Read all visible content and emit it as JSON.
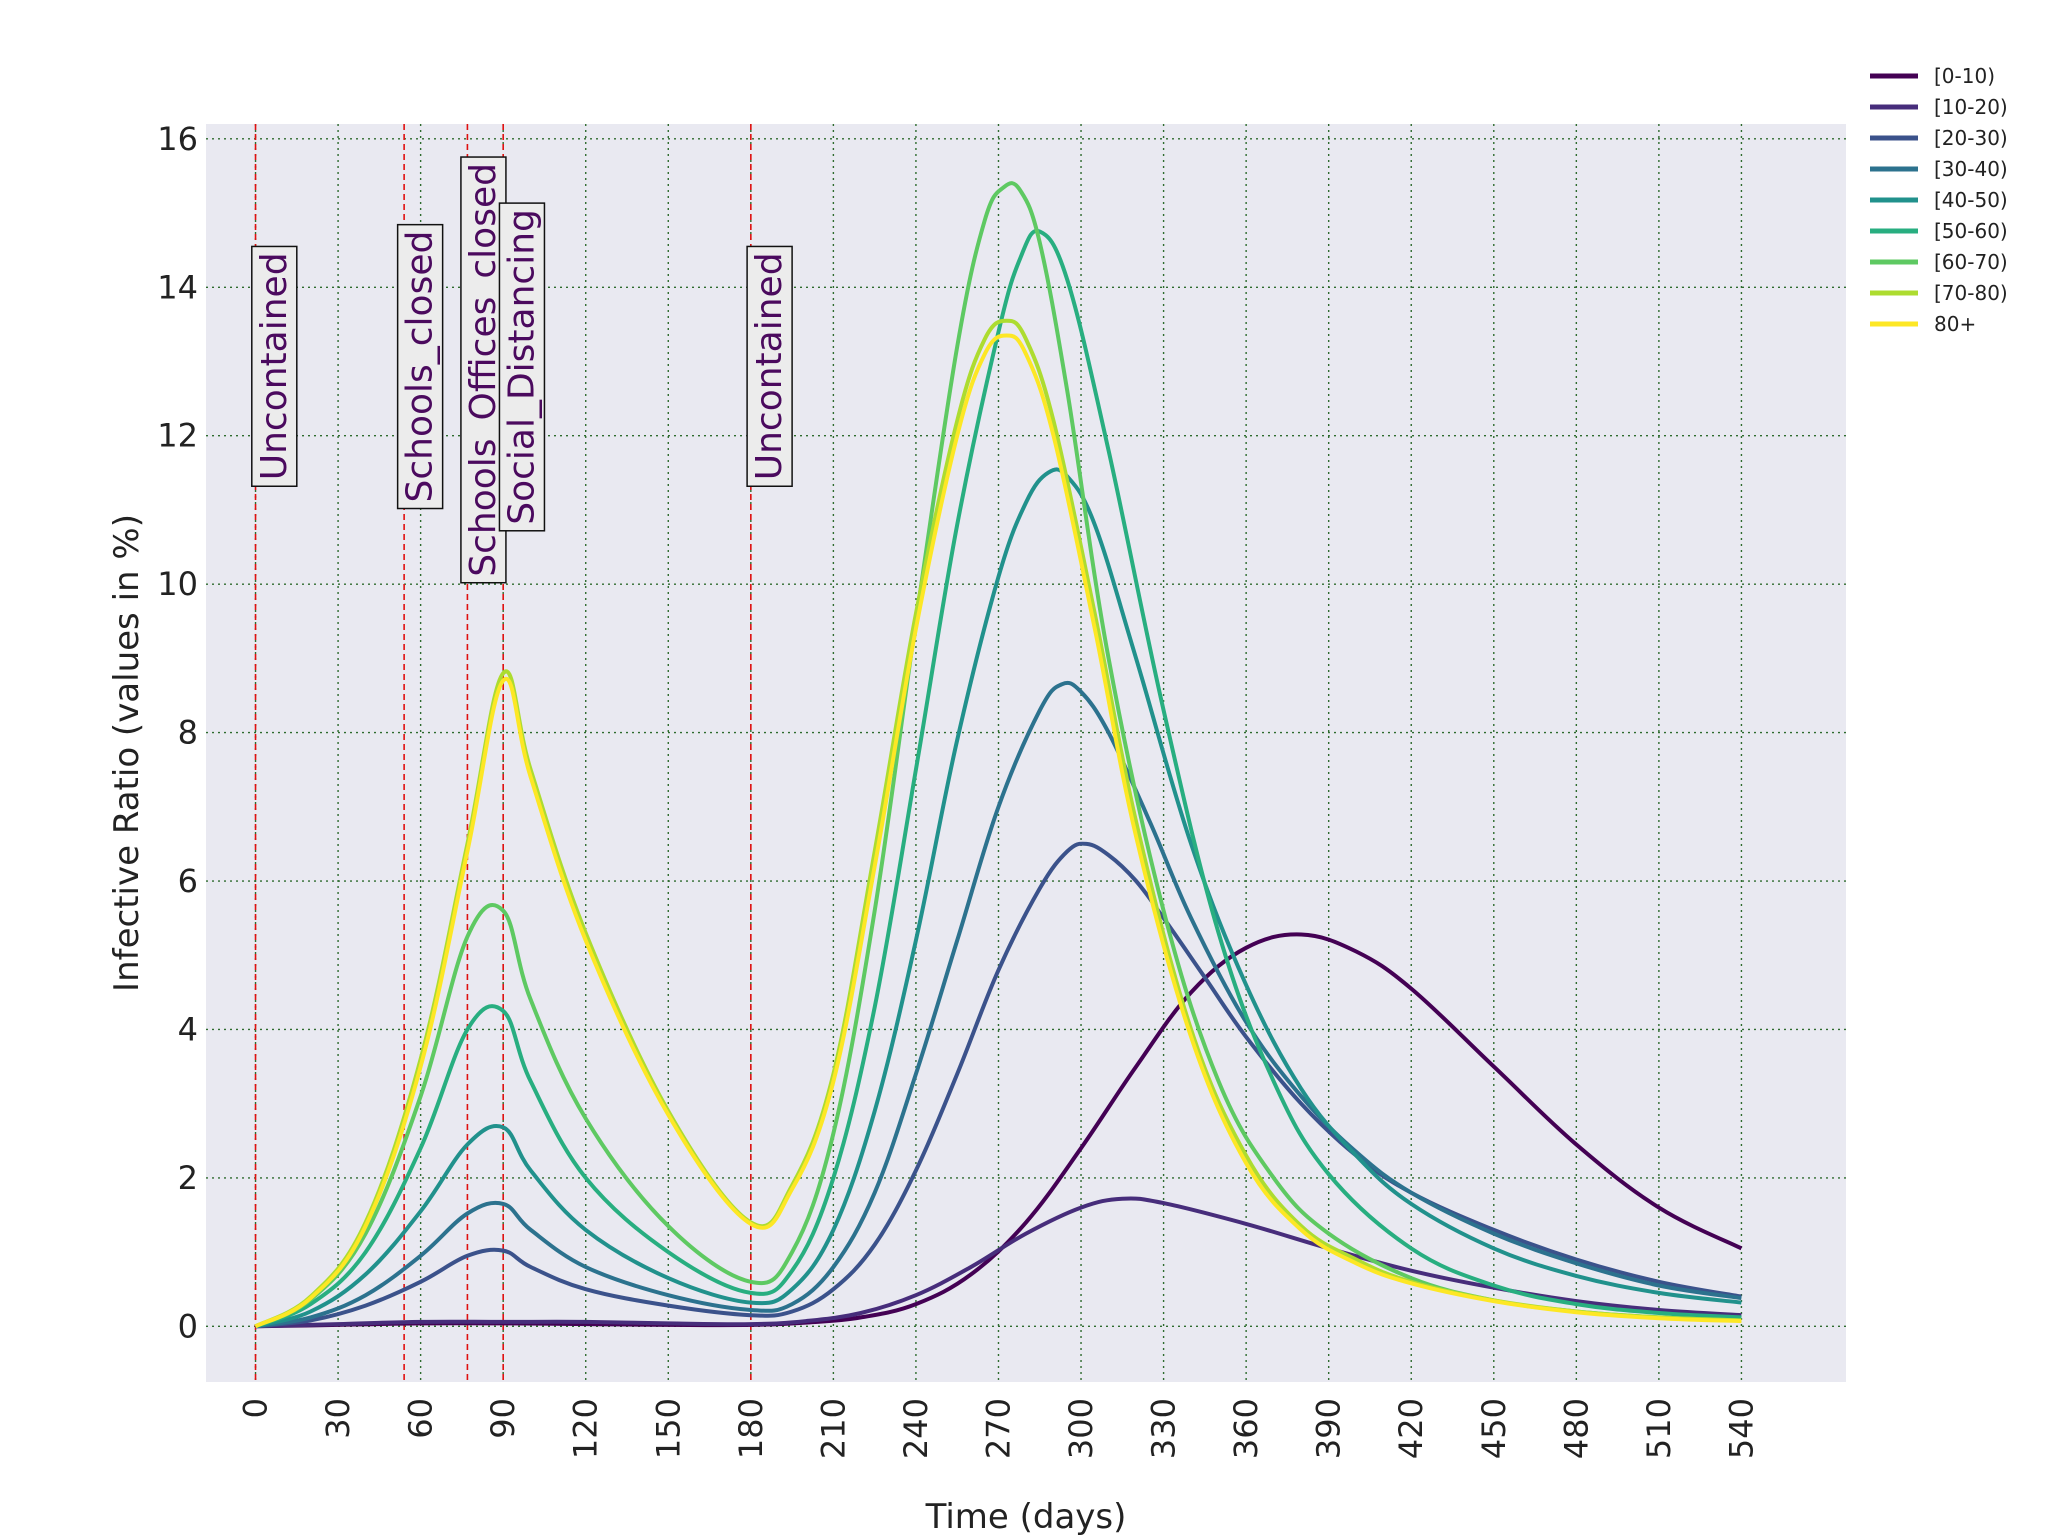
{
  "chart_data": {
    "type": "line",
    "xlabel": "Time (days)",
    "ylabel": "Infective Ratio (values in %)",
    "xlim": [
      -18,
      578
    ],
    "ylim": [
      -0.75,
      16.2
    ],
    "xticks": [
      0,
      30,
      60,
      90,
      120,
      150,
      180,
      210,
      240,
      270,
      300,
      330,
      360,
      390,
      420,
      450,
      480,
      510,
      540
    ],
    "yticks": [
      0,
      2,
      4,
      6,
      8,
      10,
      12,
      14,
      16
    ],
    "grid": true,
    "legend_position": "top-right outside",
    "vlines": [
      0,
      54,
      77,
      90,
      180
    ],
    "annotations": [
      {
        "text": "Uncontained",
        "x": 11,
        "y": 11.4
      },
      {
        "text": "Schools_closed",
        "x": 64,
        "y": 11.1
      },
      {
        "text": "Schools_Offices_closed",
        "x": 87,
        "y": 10.1
      },
      {
        "text": "Social_Distancing",
        "x": 101,
        "y": 10.8
      },
      {
        "text": "Uncontained",
        "x": 191,
        "y": 11.4
      }
    ],
    "series": [
      {
        "name": "[0-10)",
        "color": "#440154",
        "x": [
          0,
          30,
          60,
          90,
          120,
          150,
          180,
          200,
          220,
          240,
          260,
          280,
          300,
          320,
          340,
          360,
          380,
          400,
          420,
          450,
          480,
          510,
          540
        ],
        "y": [
          0,
          0.02,
          0.04,
          0.04,
          0.03,
          0.02,
          0.02,
          0.05,
          0.12,
          0.3,
          0.7,
          1.4,
          2.4,
          3.5,
          4.5,
          5.1,
          5.28,
          5.05,
          4.55,
          3.5,
          2.45,
          1.6,
          1.05
        ]
      },
      {
        "name": "[10-20)",
        "color": "#472d7b",
        "x": [
          0,
          30,
          60,
          90,
          120,
          150,
          180,
          200,
          220,
          240,
          260,
          280,
          300,
          315,
          330,
          360,
          390,
          420,
          450,
          480,
          510,
          540
        ],
        "y": [
          0,
          0.03,
          0.06,
          0.06,
          0.06,
          0.04,
          0.03,
          0.07,
          0.18,
          0.42,
          0.8,
          1.25,
          1.6,
          1.72,
          1.66,
          1.38,
          1.05,
          0.75,
          0.52,
          0.34,
          0.22,
          0.15
        ]
      },
      {
        "name": "[20-30)",
        "color": "#3b528b",
        "x": [
          0,
          20,
          40,
          60,
          77,
          90,
          100,
          120,
          150,
          180,
          195,
          210,
          225,
          240,
          255,
          270,
          285,
          295,
          302,
          310,
          320,
          330,
          345,
          360,
          380,
          400,
          420,
          450,
          480,
          510,
          540
        ],
        "y": [
          0,
          0.08,
          0.28,
          0.6,
          0.95,
          1.02,
          0.8,
          0.5,
          0.28,
          0.15,
          0.2,
          0.5,
          1.1,
          2.1,
          3.4,
          4.8,
          5.9,
          6.4,
          6.5,
          6.35,
          6.0,
          5.5,
          4.7,
          3.9,
          3.0,
          2.3,
          1.8,
          1.3,
          0.9,
          0.6,
          0.4
        ]
      },
      {
        "name": "[30-40)",
        "color": "#2c728e",
        "x": [
          0,
          20,
          40,
          60,
          77,
          90,
          100,
          120,
          150,
          180,
          195,
          210,
          225,
          240,
          255,
          270,
          285,
          293,
          300,
          310,
          325,
          340,
          360,
          380,
          400,
          420,
          450,
          480,
          510,
          540
        ],
        "y": [
          0,
          0.12,
          0.42,
          0.95,
          1.52,
          1.65,
          1.3,
          0.8,
          0.42,
          0.22,
          0.3,
          0.8,
          1.8,
          3.4,
          5.2,
          7.0,
          8.3,
          8.65,
          8.55,
          8.0,
          6.8,
          5.5,
          4.1,
          3.1,
          2.35,
          1.8,
          1.25,
          0.85,
          0.55,
          0.38
        ]
      },
      {
        "name": "[40-50)",
        "color": "#21918c",
        "x": [
          0,
          20,
          40,
          60,
          77,
          90,
          100,
          120,
          150,
          180,
          195,
          210,
          225,
          240,
          255,
          270,
          280,
          288,
          295,
          305,
          320,
          340,
          360,
          380,
          400,
          420,
          450,
          480,
          510,
          540
        ],
        "y": [
          0,
          0.2,
          0.7,
          1.55,
          2.45,
          2.68,
          2.1,
          1.3,
          0.65,
          0.32,
          0.5,
          1.3,
          2.9,
          5.2,
          7.9,
          10.1,
          11.1,
          11.5,
          11.45,
          10.8,
          9.0,
          6.5,
          4.6,
          3.2,
          2.3,
          1.65,
          1.05,
          0.68,
          0.45,
          0.32
        ]
      },
      {
        "name": "[50-60)",
        "color": "#28ae80",
        "x": [
          0,
          20,
          40,
          60,
          77,
          90,
          100,
          120,
          150,
          180,
          195,
          210,
          225,
          240,
          255,
          270,
          278,
          285,
          295,
          310,
          330,
          350,
          370,
          390,
          420,
          450,
          480,
          510,
          540
        ],
        "y": [
          0,
          0.3,
          1.0,
          2.4,
          4.0,
          4.25,
          3.3,
          2.0,
          1.0,
          0.45,
          0.75,
          2.0,
          4.3,
          7.5,
          10.8,
          13.4,
          14.4,
          14.75,
          14.1,
          11.8,
          8.3,
          5.3,
          3.3,
          2.05,
          1.05,
          0.55,
          0.3,
          0.18,
          0.12
        ]
      },
      {
        "name": "[60-70)",
        "color": "#5ec962",
        "x": [
          0,
          20,
          40,
          60,
          77,
          90,
          100,
          120,
          150,
          180,
          195,
          210,
          225,
          240,
          255,
          265,
          272,
          278,
          285,
          295,
          310,
          330,
          350,
          370,
          390,
          420,
          450,
          480,
          510,
          540
        ],
        "y": [
          0,
          0.36,
          1.25,
          3.1,
          5.25,
          5.6,
          4.4,
          2.8,
          1.35,
          0.6,
          1.0,
          2.6,
          5.6,
          9.5,
          13.2,
          14.9,
          15.35,
          15.3,
          14.6,
          12.6,
          9.0,
          5.6,
          3.3,
          2.0,
          1.25,
          0.65,
          0.35,
          0.2,
          0.12,
          0.08
        ]
      },
      {
        "name": "[70-80)",
        "color": "#addc30",
        "x": [
          0,
          20,
          40,
          60,
          77,
          90,
          100,
          120,
          150,
          180,
          195,
          210,
          225,
          240,
          255,
          265,
          273,
          280,
          290,
          305,
          320,
          340,
          360,
          380,
          400,
          420,
          450,
          480,
          510,
          540
        ],
        "y": [
          0,
          0.4,
          1.4,
          3.6,
          6.5,
          8.8,
          7.5,
          5.3,
          2.9,
          1.4,
          1.9,
          3.4,
          6.4,
          9.6,
          12.2,
          13.3,
          13.55,
          13.3,
          12.2,
          9.6,
          6.8,
          4.0,
          2.3,
          1.35,
          0.9,
          0.6,
          0.35,
          0.2,
          0.12,
          0.08
        ]
      },
      {
        "name": "80+",
        "color": "#fde725",
        "x": [
          0,
          20,
          40,
          60,
          77,
          90,
          100,
          120,
          150,
          180,
          195,
          210,
          225,
          240,
          255,
          265,
          273,
          280,
          290,
          305,
          320,
          340,
          360,
          380,
          400,
          420,
          450,
          480,
          510,
          540
        ],
        "y": [
          0,
          0.38,
          1.35,
          3.5,
          6.4,
          8.7,
          7.4,
          5.2,
          2.85,
          1.38,
          1.85,
          3.3,
          6.2,
          9.4,
          12.0,
          13.1,
          13.35,
          13.1,
          12.0,
          9.4,
          6.6,
          3.9,
          2.2,
          1.3,
          0.85,
          0.58,
          0.34,
          0.19,
          0.11,
          0.07
        ]
      }
    ]
  }
}
